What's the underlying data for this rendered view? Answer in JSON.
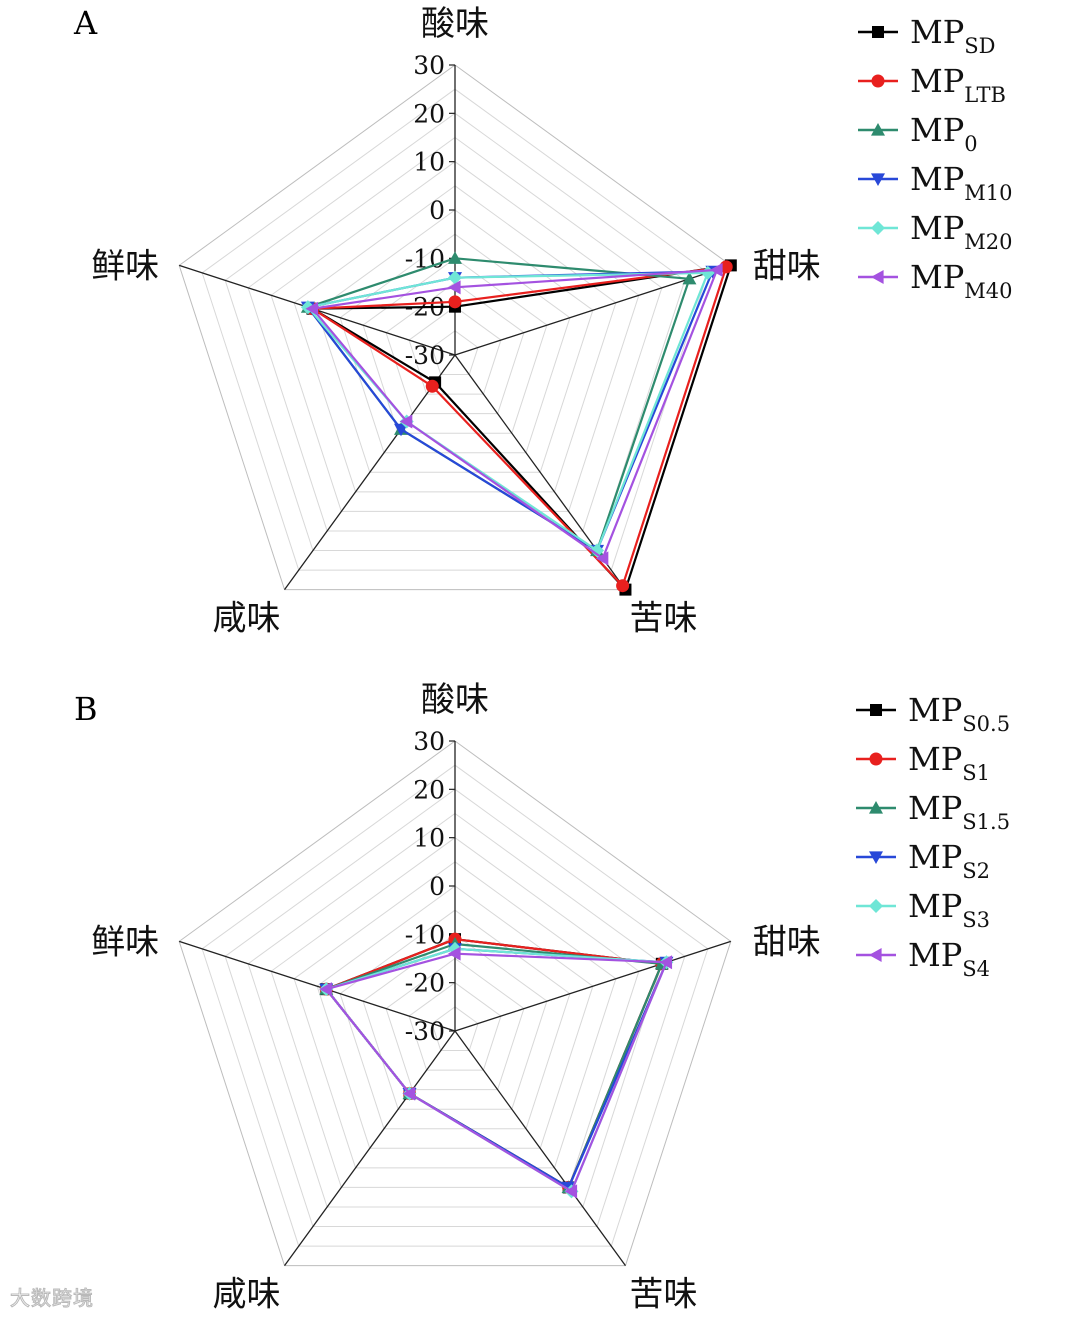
{
  "chart_data": [
    {
      "panel": "A",
      "type": "radar",
      "axes": [
        "酸味",
        "甜味",
        "苦味",
        "咸味",
        "鲜味"
      ],
      "rticks": [
        30,
        20,
        10,
        0,
        -10,
        -20,
        -30
      ],
      "rlim": [
        -30,
        30
      ],
      "grid": true,
      "legend_position": "top-right",
      "series": [
        {
          "name": "MP",
          "sub": "SD",
          "marker": "square",
          "color": "#000000",
          "values": [
            -20,
            30,
            30,
            -23,
            1
          ]
        },
        {
          "name": "MP",
          "sub": "LTB",
          "marker": "circle",
          "color": "#e8201e",
          "values": [
            -19,
            29,
            29,
            -22,
            1
          ]
        },
        {
          "name": "MP",
          "sub": "0",
          "marker": "triangle-up",
          "color": "#2e8b6e",
          "values": [
            -10,
            21,
            20,
            -11,
            2
          ]
        },
        {
          "name": "MP",
          "sub": "M10",
          "marker": "triangle-down",
          "color": "#2848d8",
          "values": [
            -14,
            26,
            20,
            -11,
            2
          ]
        },
        {
          "name": "MP",
          "sub": "M20",
          "marker": "diamond",
          "color": "#6fe6d6",
          "values": [
            -14,
            25,
            20,
            -13,
            2
          ]
        },
        {
          "name": "MP",
          "sub": "M40",
          "marker": "triangle-left",
          "color": "#a452e0",
          "values": [
            -16,
            27,
            22,
            -13,
            1
          ]
        }
      ]
    },
    {
      "panel": "B",
      "type": "radar",
      "axes": [
        "酸味",
        "甜味",
        "苦味",
        "咸味",
        "鲜味"
      ],
      "rticks": [
        30,
        20,
        10,
        0,
        -10,
        -20,
        -30
      ],
      "rlim": [
        -30,
        30
      ],
      "grid": true,
      "legend_position": "top-right",
      "series": [
        {
          "name": "MP",
          "sub": "S0.5",
          "marker": "square",
          "color": "#000000",
          "values": [
            -11,
            15,
            10,
            -14,
            -2
          ]
        },
        {
          "name": "MP",
          "sub": "S1",
          "marker": "circle",
          "color": "#e8201e",
          "values": [
            -11,
            15,
            10,
            -14,
            -2
          ]
        },
        {
          "name": "MP",
          "sub": "S1.5",
          "marker": "triangle-up",
          "color": "#2e8b6e",
          "values": [
            -12,
            15,
            10,
            -14,
            -2
          ]
        },
        {
          "name": "MP",
          "sub": "S2",
          "marker": "triangle-down",
          "color": "#2848d8",
          "values": [
            -13,
            16,
            10,
            -14,
            -2
          ]
        },
        {
          "name": "MP",
          "sub": "S3",
          "marker": "diamond",
          "color": "#6fe6d6",
          "values": [
            -13,
            16,
            11,
            -14,
            -2
          ]
        },
        {
          "name": "MP",
          "sub": "S4",
          "marker": "triangle-left",
          "color": "#a452e0",
          "values": [
            -14,
            16,
            11,
            -14,
            -2
          ]
        }
      ]
    }
  ],
  "watermark": "大数跨境"
}
